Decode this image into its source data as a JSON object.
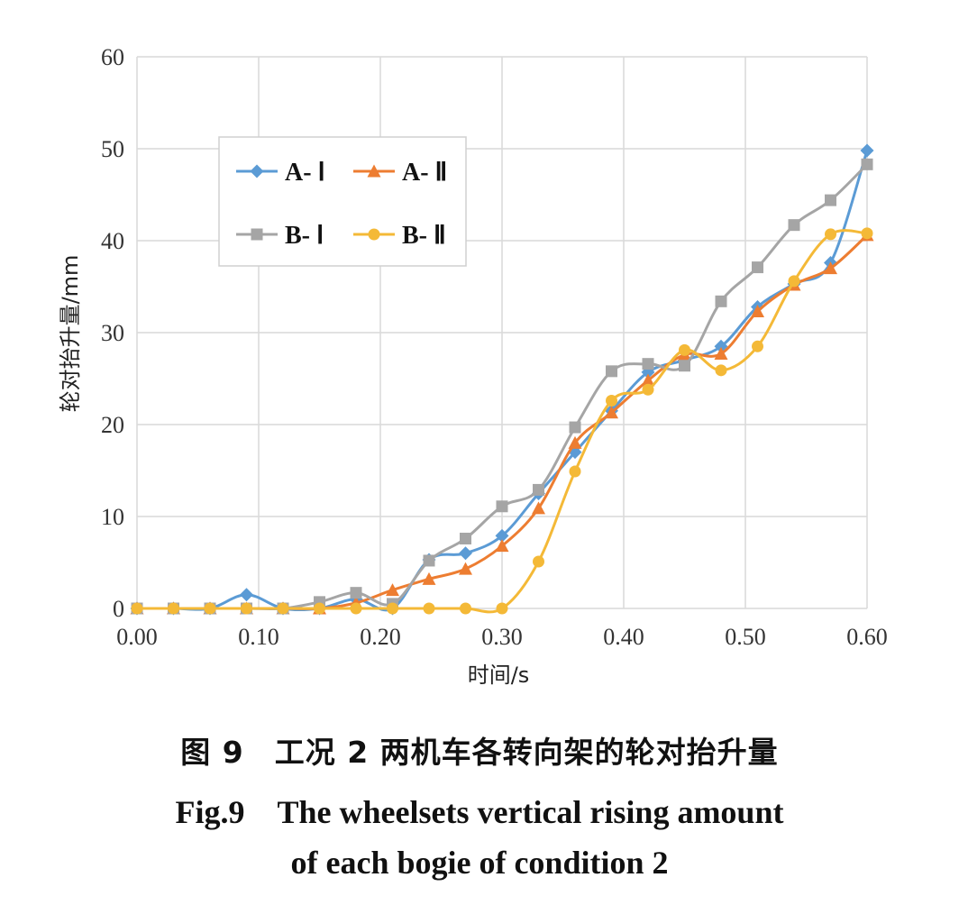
{
  "chart_data": {
    "type": "line",
    "title": "",
    "xlabel": "时间/s",
    "ylabel": "轮对抬升量/mm",
    "xlim": [
      0,
      0.6
    ],
    "ylim": [
      0,
      60
    ],
    "x_ticks": [
      "0.00",
      "0.10",
      "0.20",
      "0.30",
      "0.40",
      "0.50",
      "0.60"
    ],
    "y_ticks": [
      "0",
      "10",
      "20",
      "30",
      "40",
      "50",
      "60"
    ],
    "grid": true,
    "legend_position": "top-left",
    "x": [
      0.0,
      0.03,
      0.06,
      0.09,
      0.12,
      0.15,
      0.18,
      0.21,
      0.24,
      0.27,
      0.3,
      0.33,
      0.36,
      0.39,
      0.42,
      0.45,
      0.48,
      0.51,
      0.54,
      0.57,
      0.6
    ],
    "series": [
      {
        "name": "A- Ⅰ",
        "color": "#5b9bd5",
        "marker": "diamond",
        "values": [
          0,
          0,
          0,
          1.5,
          0,
          0,
          1.0,
          0,
          5.3,
          6.0,
          7.9,
          12.5,
          17.0,
          21.5,
          25.7,
          27.0,
          28.5,
          32.8,
          35.3,
          37.6,
          49.8
        ]
      },
      {
        "name": "A- Ⅱ",
        "color": "#ed7d31",
        "marker": "triangle",
        "values": [
          0,
          0,
          0,
          0,
          0,
          0,
          0.6,
          2.0,
          3.2,
          4.3,
          6.8,
          10.9,
          18.0,
          21.3,
          24.8,
          27.6,
          27.7,
          32.3,
          35.2,
          37.0,
          40.6
        ]
      },
      {
        "name": "B- Ⅰ",
        "color": "#a5a5a5",
        "marker": "square",
        "values": [
          0,
          0,
          0,
          0,
          0,
          0.7,
          1.7,
          0.5,
          5.2,
          7.6,
          11.1,
          12.9,
          19.7,
          25.8,
          26.6,
          26.4,
          33.4,
          37.1,
          41.7,
          44.4,
          48.3
        ]
      },
      {
        "name": "B- Ⅱ",
        "color": "#f4b937",
        "marker": "circle",
        "values": [
          0,
          0,
          0,
          0,
          0,
          0,
          0,
          0,
          0,
          0,
          0,
          5.1,
          14.9,
          22.6,
          23.8,
          28.1,
          25.9,
          28.5,
          35.6,
          40.7,
          40.8
        ]
      }
    ]
  },
  "caption": {
    "cn": "图 9　工况 2 两机车各转向架的轮对抬升量",
    "en_line1": "Fig.9　The wheelsets vertical rising amount",
    "en_line2": "of each bogie of condition 2"
  }
}
